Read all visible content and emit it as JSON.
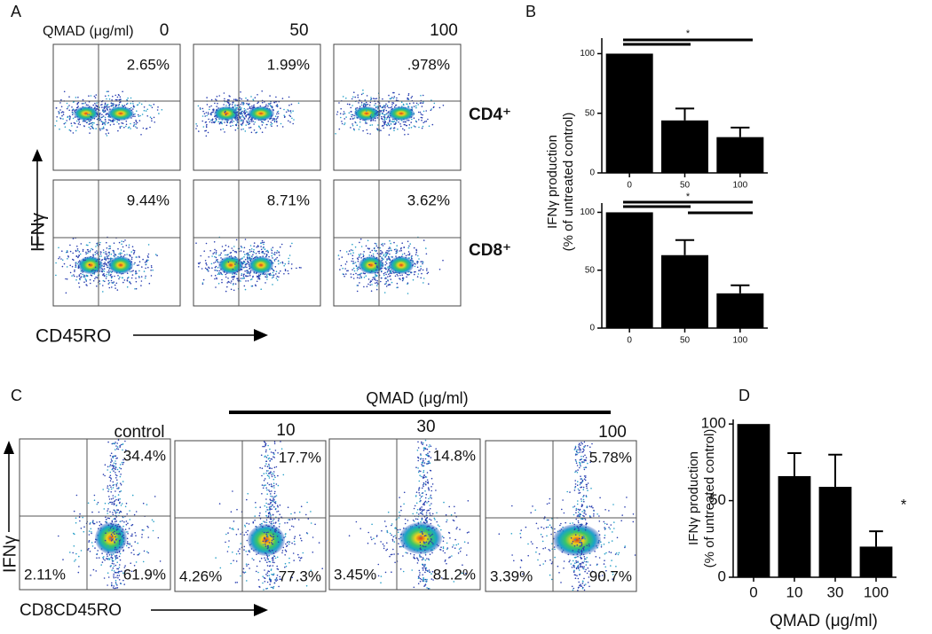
{
  "chart_data": [
    {
      "type": "flow",
      "panel": "A",
      "header": "QMAD (μg/ml)",
      "conditions": [
        "0",
        "50",
        "100"
      ],
      "y_label": "IFNγ",
      "x_label": "CD45RO",
      "rows": [
        {
          "name": "CD4⁺",
          "labels": [
            "2.65%",
            "1.99%",
            ".978%"
          ]
        },
        {
          "name": "CD8⁺",
          "labels": [
            "9.44%",
            "8.71%",
            "3.62%"
          ]
        }
      ]
    },
    {
      "type": "bar",
      "panel": "B",
      "y_label": [
        "IFNγ production",
        "(% of untreated control)"
      ],
      "categories": [
        "0",
        "50",
        "100"
      ],
      "values": [
        100,
        44,
        30
      ],
      "errors": [
        null,
        10,
        8
      ],
      "annotation": "*",
      "ylim": [
        0,
        113
      ],
      "yticks": [
        0,
        50,
        100
      ],
      "color": "#000000"
    },
    {
      "type": "bar",
      "categories": [
        "0",
        "50",
        "100"
      ],
      "values": [
        100,
        63,
        30
      ],
      "errors": [
        null,
        13,
        7
      ],
      "annotation": "*",
      "ylim": [
        0,
        108
      ],
      "yticks": [
        0,
        50,
        100
      ],
      "color": "#000000"
    },
    {
      "type": "flow",
      "panel": "C",
      "header": "QMAD (μg/ml)",
      "conditions": [
        "control",
        "10",
        "30",
        "100"
      ],
      "y_label": "IFNγ",
      "x_label": "CD8CD45RO",
      "quadrants": [
        [
          "34.4%",
          "2.11%",
          "61.9%"
        ],
        [
          "17.7%",
          "4.26%",
          "77.3%"
        ],
        [
          "14.8%",
          "3.45%",
          "81.2%"
        ],
        [
          "5.78%",
          "3.39%",
          "90.7%"
        ]
      ]
    },
    {
      "type": "bar",
      "panel": "D",
      "y_label": [
        "IFNγ production",
        "(% of untreated control)"
      ],
      "x_label": "QMAD (μg/ml)",
      "categories": [
        "0",
        "10",
        "30",
        "100"
      ],
      "values": [
        100,
        66,
        59,
        20
      ],
      "errors": [
        null,
        15,
        21,
        10
      ],
      "annotation": "*",
      "ylim": [
        0,
        103
      ],
      "yticks": [
        0,
        50,
        100
      ],
      "color": "#000000"
    }
  ]
}
